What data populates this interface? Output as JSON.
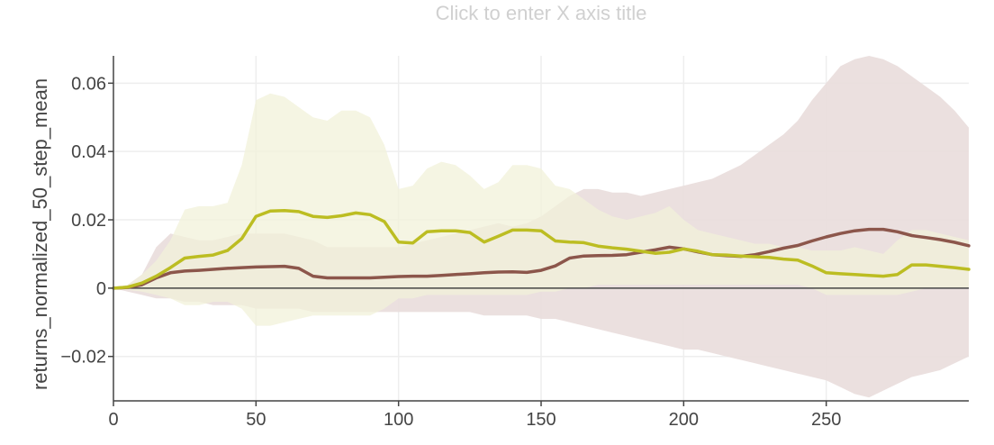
{
  "chart_data": {
    "type": "line",
    "title": "",
    "xlabel": "Click to enter X axis title",
    "ylabel": "returns_normalized_50_step_mean",
    "xlim": [
      0,
      300
    ],
    "ylim": [
      -0.033,
      0.068
    ],
    "x_ticks": [
      0,
      50,
      100,
      150,
      200,
      250
    ],
    "y_ticks": [
      -0.02,
      0,
      0.02,
      0.04,
      0.06
    ],
    "x_tick_labels": [
      "0",
      "50",
      "100",
      "150",
      "200",
      "250"
    ],
    "y_tick_labels": [
      "−0.02",
      "0",
      "0.02",
      "0.04",
      "0.06"
    ],
    "grid": true,
    "legend": "none",
    "x": [
      0,
      5,
      10,
      15,
      20,
      25,
      30,
      35,
      40,
      45,
      50,
      55,
      60,
      65,
      70,
      75,
      80,
      85,
      90,
      95,
      100,
      105,
      110,
      115,
      120,
      125,
      130,
      135,
      140,
      145,
      150,
      155,
      160,
      165,
      170,
      175,
      180,
      185,
      190,
      195,
      200,
      205,
      210,
      215,
      220,
      225,
      230,
      235,
      240,
      245,
      250,
      255,
      260,
      265,
      270,
      275,
      280,
      285,
      290,
      295,
      300
    ],
    "series": [
      {
        "color": "#8c564b",
        "band_color": "#e9dddb",
        "values": [
          0,
          0.0002,
          0.001,
          0.003,
          0.0045,
          0.005,
          0.0052,
          0.0055,
          0.0058,
          0.006,
          0.0062,
          0.0063,
          0.0064,
          0.0058,
          0.0035,
          0.003,
          0.003,
          0.003,
          0.003,
          0.0032,
          0.0034,
          0.0035,
          0.0035,
          0.0037,
          0.004,
          0.0042,
          0.0045,
          0.0047,
          0.0048,
          0.0046,
          0.0052,
          0.0065,
          0.0088,
          0.0094,
          0.0095,
          0.0096,
          0.0098,
          0.0105,
          0.0112,
          0.012,
          0.0115,
          0.0106,
          0.0098,
          0.0095,
          0.0093,
          0.0098,
          0.0107,
          0.0117,
          0.0125,
          0.0138,
          0.015,
          0.016,
          0.0168,
          0.0172,
          0.0172,
          0.0165,
          0.0154,
          0.0148,
          0.0142,
          0.0134,
          0.0124
        ],
        "upper": [
          0,
          0.001,
          0.004,
          0.012,
          0.016,
          0.015,
          0.014,
          0.014,
          0.015,
          0.016,
          0.016,
          0.016,
          0.016,
          0.015,
          0.014,
          0.012,
          0.012,
          0.012,
          0.012,
          0.012,
          0.012,
          0.013,
          0.014,
          0.015,
          0.016,
          0.017,
          0.018,
          0.019,
          0.018,
          0.019,
          0.021,
          0.024,
          0.027,
          0.029,
          0.029,
          0.028,
          0.028,
          0.027,
          0.028,
          0.029,
          0.03,
          0.031,
          0.032,
          0.034,
          0.036,
          0.039,
          0.042,
          0.045,
          0.049,
          0.055,
          0.06,
          0.065,
          0.067,
          0.068,
          0.067,
          0.065,
          0.062,
          0.059,
          0.056,
          0.052,
          0.047
        ],
        "lower": [
          0,
          -0.001,
          -0.002,
          -0.003,
          -0.003,
          -0.004,
          -0.004,
          -0.005,
          -0.005,
          -0.005,
          -0.006,
          -0.006,
          -0.006,
          -0.006,
          -0.007,
          -0.007,
          -0.007,
          -0.007,
          -0.007,
          -0.007,
          -0.007,
          -0.007,
          -0.007,
          -0.007,
          -0.007,
          -0.007,
          -0.008,
          -0.008,
          -0.008,
          -0.008,
          -0.009,
          -0.009,
          -0.01,
          -0.011,
          -0.012,
          -0.013,
          -0.014,
          -0.015,
          -0.016,
          -0.017,
          -0.018,
          -0.018,
          -0.019,
          -0.02,
          -0.021,
          -0.022,
          -0.023,
          -0.024,
          -0.025,
          -0.026,
          -0.027,
          -0.029,
          -0.031,
          -0.032,
          -0.03,
          -0.028,
          -0.026,
          -0.025,
          -0.024,
          -0.022,
          -0.02
        ]
      },
      {
        "color": "#bcbd22",
        "band_color": "#f2f2d9",
        "values": [
          0,
          0.0003,
          0.0015,
          0.0035,
          0.006,
          0.0088,
          0.0093,
          0.0097,
          0.011,
          0.0145,
          0.021,
          0.0226,
          0.0227,
          0.0224,
          0.021,
          0.0207,
          0.0212,
          0.022,
          0.0215,
          0.0195,
          0.0135,
          0.0132,
          0.0165,
          0.0168,
          0.0168,
          0.0163,
          0.0135,
          0.0152,
          0.017,
          0.017,
          0.0168,
          0.0138,
          0.0135,
          0.0133,
          0.0123,
          0.0118,
          0.0114,
          0.0108,
          0.0102,
          0.0105,
          0.0115,
          0.0108,
          0.0098,
          0.0097,
          0.0094,
          0.0092,
          0.009,
          0.0085,
          0.0082,
          0.0065,
          0.0045,
          0.0042,
          0.004,
          0.0037,
          0.0035,
          0.004,
          0.0068,
          0.0068,
          0.0064,
          0.006,
          0.0055
        ],
        "upper": [
          0,
          0.001,
          0.004,
          0.008,
          0.014,
          0.023,
          0.024,
          0.024,
          0.025,
          0.036,
          0.055,
          0.057,
          0.056,
          0.053,
          0.05,
          0.049,
          0.052,
          0.052,
          0.05,
          0.042,
          0.029,
          0.03,
          0.035,
          0.037,
          0.036,
          0.033,
          0.029,
          0.031,
          0.036,
          0.036,
          0.035,
          0.03,
          0.029,
          0.026,
          0.023,
          0.021,
          0.02,
          0.021,
          0.022,
          0.024,
          0.02,
          0.017,
          0.016,
          0.015,
          0.014,
          0.013,
          0.013,
          0.012,
          0.012,
          0.011,
          0.011,
          0.011,
          0.012,
          0.011,
          0.01,
          0.014,
          0.017,
          0.017,
          0.016,
          0.015,
          0.014
        ],
        "lower": [
          0,
          -0.0005,
          -0.001,
          -0.002,
          -0.003,
          -0.005,
          -0.005,
          -0.004,
          -0.004,
          -0.006,
          -0.011,
          -0.011,
          -0.01,
          -0.009,
          -0.008,
          -0.008,
          -0.008,
          -0.008,
          -0.008,
          -0.006,
          -0.003,
          -0.003,
          -0.002,
          -0.002,
          -0.002,
          -0.002,
          -0.002,
          -0.002,
          -0.002,
          -0.002,
          -0.001,
          -0.001,
          0,
          0,
          0.001,
          0.001,
          0.001,
          0.001,
          0.001,
          0.001,
          0.001,
          0.001,
          0.001,
          0.001,
          0.001,
          0.001,
          0.001,
          0.001,
          0.001,
          0,
          -0.002,
          -0.002,
          -0.002,
          -0.002,
          -0.002,
          -0.002,
          -0.001,
          0,
          0,
          0,
          0
        ]
      }
    ]
  }
}
